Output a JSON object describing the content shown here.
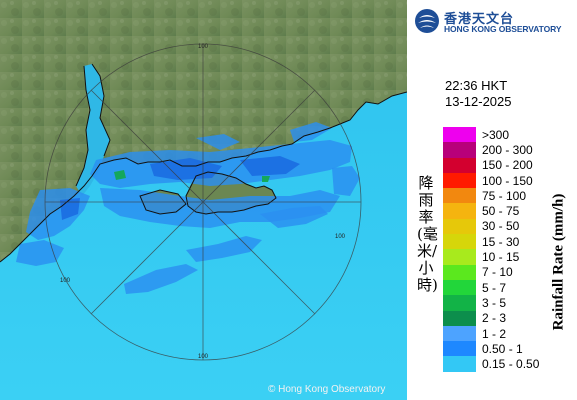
{
  "header": {
    "org_name_zh": "香港天文台",
    "org_name_en": "HONG KONG OBSERVATORY"
  },
  "timestamp": {
    "time": "22:36 HKT",
    "date": "13-12-2025"
  },
  "legend": {
    "title_zh": "降雨率(毫米/小時)",
    "title_en": "Rainfall Rate (mm/h)",
    "items": [
      {
        "label": ">300",
        "color": "#ee00ee"
      },
      {
        "label": "200 - 300",
        "color": "#b8007a"
      },
      {
        "label": "150 - 200",
        "color": "#d3002f"
      },
      {
        "label": "100 - 150",
        "color": "#ff1a00"
      },
      {
        "label": "75 - 100",
        "color": "#f2880f"
      },
      {
        "label": "50 - 75",
        "color": "#f5b40f"
      },
      {
        "label": "30 - 50",
        "color": "#e6c80a"
      },
      {
        "label": "15 - 30",
        "color": "#d6d60a"
      },
      {
        "label": "10 - 15",
        "color": "#a8ea1d"
      },
      {
        "label": "7 - 10",
        "color": "#5be81e"
      },
      {
        "label": "5 - 7",
        "color": "#22d63a"
      },
      {
        "label": "3 - 5",
        "color": "#12b347"
      },
      {
        "label": "2 - 3",
        "color": "#0c8e4c"
      },
      {
        "label": "1 - 2",
        "color": "#4da3ff"
      },
      {
        "label": "0.50 - 1",
        "color": "#1e88ff"
      },
      {
        "label": "0.15 - 0.50",
        "color": "#33c8f5"
      }
    ]
  },
  "map": {
    "range_ring_labels": [
      "100",
      "100",
      "100",
      "100"
    ],
    "copyright": "© Hong Kong Observatory",
    "colors": {
      "sea": "#33c8f0",
      "land": "#6f8c55",
      "rain_light": "#2b8ff0",
      "rain_medium": "#1a6ae0",
      "rain_heavy": "#0c8e4c"
    }
  }
}
